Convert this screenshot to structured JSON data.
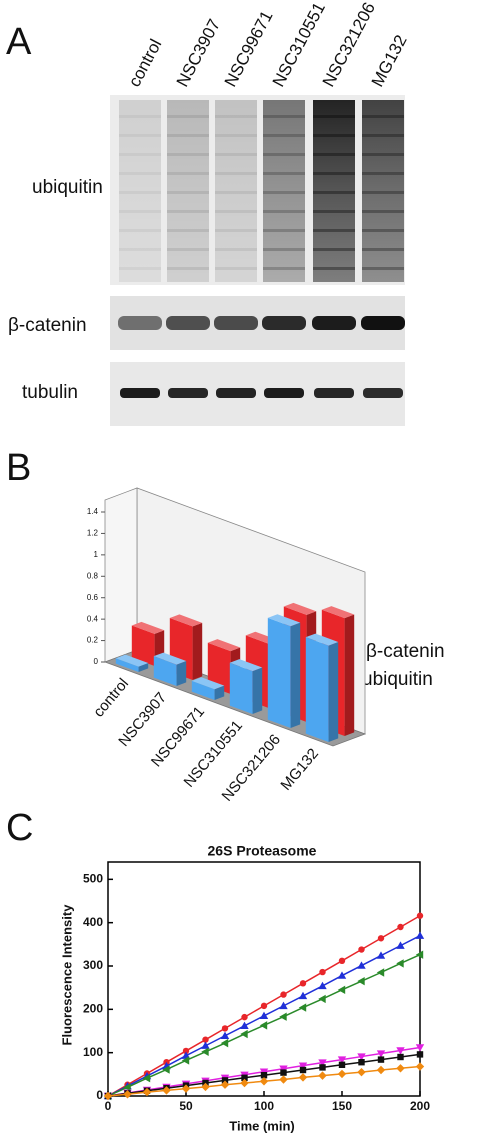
{
  "figure": {
    "panel_labels": [
      "A",
      "B",
      "C"
    ]
  },
  "blot": {
    "lanes": [
      "control",
      "NSC3907",
      "NSC99671",
      "NSC310551",
      "NSC321206",
      "MG132"
    ],
    "rows": [
      "ubiquitin",
      "β-catenin",
      "tubulin"
    ]
  },
  "chart_data": [
    {
      "type": "bar3d",
      "categories": [
        "control",
        "NSC3907",
        "NSC99671",
        "NSC310551",
        "NSC321206",
        "MG132"
      ],
      "series": [
        {
          "name": "β-catenin",
          "color": "#e8262a",
          "values": [
            0.3,
            0.5,
            0.4,
            0.6,
            1.0,
            1.1
          ]
        },
        {
          "name": "ubiquitin",
          "color": "#4da6f0",
          "values": [
            0.05,
            0.2,
            0.1,
            0.4,
            0.95,
            0.9
          ]
        }
      ],
      "ylim": [
        0,
        1.4
      ],
      "yticks": [
        0,
        0.2,
        0.4,
        0.6,
        0.8,
        1,
        1.2,
        1.4
      ]
    },
    {
      "type": "line",
      "title": "26S Proteasome",
      "x_label": "Time (min)",
      "y_label": "Fluorescence Intensity",
      "x": [
        0,
        12.5,
        25,
        37.5,
        50,
        62.5,
        75,
        87.5,
        100,
        112.5,
        125,
        137.5,
        150,
        162.5,
        175,
        187.5,
        200
      ],
      "series": [
        {
          "color": "#e8262a",
          "marker": "circle",
          "values": [
            0,
            26,
            52,
            78,
            104,
            130,
            156,
            182,
            208,
            234,
            260,
            286,
            312,
            338,
            364,
            390,
            416
          ]
        },
        {
          "color": "#2030d8",
          "marker": "triangle-up",
          "values": [
            0,
            23,
            46,
            69,
            93,
            116,
            139,
            162,
            185,
            208,
            231,
            254,
            278,
            301,
            324,
            347,
            370
          ]
        },
        {
          "color": "#2a8a2a",
          "marker": "triangle-left",
          "values": [
            0,
            20,
            41,
            61,
            82,
            102,
            122,
            143,
            163,
            183,
            204,
            224,
            245,
            265,
            285,
            306,
            326
          ]
        },
        {
          "color": "#e020e0",
          "marker": "triangle-down",
          "values": [
            0,
            7,
            14,
            21,
            28,
            35,
            42,
            49,
            56,
            63,
            70,
            77,
            84,
            91,
            98,
            105,
            112
          ]
        },
        {
          "color": "#111111",
          "marker": "square",
          "values": [
            0,
            6,
            12,
            18,
            24,
            30,
            36,
            42,
            48,
            54,
            60,
            66,
            72,
            78,
            84,
            90,
            96
          ]
        },
        {
          "color": "#f08a10",
          "marker": "diamond",
          "values": [
            0,
            4,
            9,
            13,
            17,
            21,
            26,
            30,
            34,
            38,
            43,
            47,
            51,
            55,
            60,
            64,
            68
          ]
        }
      ],
      "xlim": [
        0,
        200
      ],
      "ylim": [
        0,
        540
      ],
      "xticks": [
        0,
        50,
        100,
        150,
        200
      ],
      "yticks": [
        0,
        100,
        200,
        300,
        400,
        500
      ]
    }
  ]
}
